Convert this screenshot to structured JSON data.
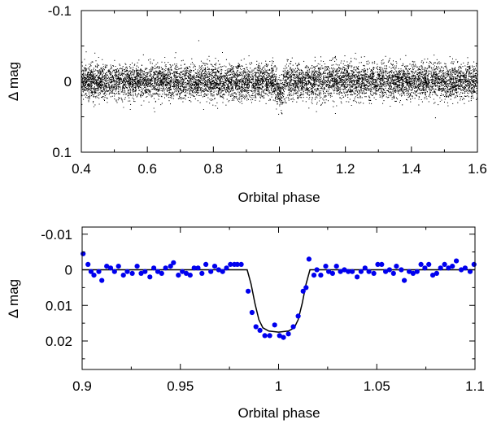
{
  "chart_data": [
    {
      "type": "scatter",
      "xlabel": "Orbital phase",
      "ylabel": "Δ mag",
      "xlim": [
        0.4,
        1.6
      ],
      "ylim": [
        0.1,
        -0.1
      ],
      "y_inverted": true,
      "xticks": [
        0.4,
        0.6,
        0.8,
        1.0,
        1.2,
        1.4,
        1.6
      ],
      "xtick_labels": [
        "0.4",
        "0.6",
        "0.8",
        "1",
        "1.2",
        "1.4",
        "1.6"
      ],
      "yticks": [
        -0.1,
        0,
        0.1
      ],
      "ytick_labels": [
        "-0.1",
        "0",
        "0.1"
      ],
      "grid": false,
      "point_color": "#000000",
      "description_of_cloud": {
        "center_mag": 0.0,
        "scatter_sigma_mag": 0.012,
        "transit_center_phase": 1.0,
        "transit_depth_mag": 0.017,
        "transit_half_width_phase": 0.012,
        "n_points_shown": 9000
      }
    },
    {
      "type": "scatter",
      "xlabel": "Orbital phase",
      "ylabel": "Δ mag",
      "xlim": [
        0.9,
        1.1
      ],
      "ylim": [
        0.028,
        -0.012
      ],
      "y_inverted": true,
      "xticks": [
        0.9,
        0.95,
        1.0,
        1.05,
        1.1
      ],
      "xtick_labels": [
        "0.9",
        "0.95",
        "1",
        "1.05",
        "1.1"
      ],
      "yticks": [
        -0.01,
        0,
        0.01,
        0.02
      ],
      "ytick_labels": [
        "-0.01",
        "0",
        "0.01",
        "0.02"
      ],
      "grid": false,
      "point_color": "#0000ee",
      "model_color": "#000000",
      "points": [
        [
          0.9005,
          -0.0045
        ],
        [
          0.903,
          -0.0015
        ],
        [
          0.9045,
          0.0005
        ],
        [
          0.906,
          0.0015
        ],
        [
          0.9085,
          0.0005
        ],
        [
          0.91,
          0.003
        ],
        [
          0.9125,
          -0.001
        ],
        [
          0.9145,
          -0.0005
        ],
        [
          0.9165,
          0.0005
        ],
        [
          0.9185,
          -0.001
        ],
        [
          0.921,
          0.0015
        ],
        [
          0.923,
          0.0005
        ],
        [
          0.9255,
          0.001
        ],
        [
          0.928,
          -0.001
        ],
        [
          0.93,
          0.001
        ],
        [
          0.932,
          0.0005
        ],
        [
          0.9345,
          0.002
        ],
        [
          0.9365,
          -0.0005
        ],
        [
          0.9385,
          0.0005
        ],
        [
          0.9405,
          0.001
        ],
        [
          0.9425,
          -0.0005
        ],
        [
          0.945,
          -0.001
        ],
        [
          0.9465,
          -0.002
        ],
        [
          0.949,
          0.0015
        ],
        [
          0.951,
          0.0005
        ],
        [
          0.953,
          0.001
        ],
        [
          0.955,
          0.0015
        ],
        [
          0.957,
          -0.0005
        ],
        [
          0.959,
          -0.0005
        ],
        [
          0.961,
          0.001
        ],
        [
          0.963,
          -0.0015
        ],
        [
          0.9655,
          0.0005
        ],
        [
          0.9675,
          -0.001
        ],
        [
          0.9695,
          0.0
        ],
        [
          0.9715,
          0.0005
        ],
        [
          0.9735,
          -0.0005
        ],
        [
          0.9755,
          -0.0015
        ],
        [
          0.9775,
          -0.0015
        ],
        [
          0.979,
          -0.0015
        ],
        [
          0.981,
          -0.0015
        ],
        [
          0.9845,
          0.006
        ],
        [
          0.9865,
          0.012
        ],
        [
          0.9885,
          0.016
        ],
        [
          0.9905,
          0.017
        ],
        [
          0.993,
          0.0185
        ],
        [
          0.9955,
          0.0185
        ],
        [
          0.998,
          0.0155
        ],
        [
          1.0005,
          0.0185
        ],
        [
          1.0025,
          0.019
        ],
        [
          1.005,
          0.018
        ],
        [
          1.0075,
          0.016
        ],
        [
          1.01,
          0.013
        ],
        [
          1.0125,
          0.006
        ],
        [
          1.014,
          0.005
        ],
        [
          1.0155,
          -0.003
        ],
        [
          1.018,
          0.0015
        ],
        [
          1.0195,
          0.0
        ],
        [
          1.0215,
          0.0015
        ],
        [
          1.024,
          -0.001
        ],
        [
          1.0255,
          0.0005
        ],
        [
          1.0275,
          0.001
        ],
        [
          1.0295,
          -0.001
        ],
        [
          1.0315,
          0.0005
        ],
        [
          1.0335,
          0.0
        ],
        [
          1.0355,
          0.0005
        ],
        [
          1.0375,
          0.0005
        ],
        [
          1.04,
          0.002
        ],
        [
          1.042,
          0.0005
        ],
        [
          1.044,
          -0.0005
        ],
        [
          1.046,
          0.0005
        ],
        [
          1.0485,
          0.001
        ],
        [
          1.0505,
          -0.0015
        ],
        [
          1.0525,
          -0.0015
        ],
        [
          1.0545,
          0.0005
        ],
        [
          1.0565,
          0.0
        ],
        [
          1.0585,
          0.001
        ],
        [
          1.06,
          -0.001
        ],
        [
          1.0625,
          0.0
        ],
        [
          1.064,
          0.003
        ],
        [
          1.0665,
          0.0005
        ],
        [
          1.0685,
          0.001
        ],
        [
          1.0705,
          0.0005
        ],
        [
          1.0725,
          -0.0015
        ],
        [
          1.0745,
          -0.0005
        ],
        [
          1.0765,
          -0.0015
        ],
        [
          1.0785,
          0.0015
        ],
        [
          1.0805,
          0.001
        ],
        [
          1.0825,
          -0.0005
        ],
        [
          1.0845,
          -0.0015
        ],
        [
          1.0865,
          -0.0005
        ],
        [
          1.0885,
          -0.001
        ],
        [
          1.0905,
          -0.0025
        ],
        [
          1.093,
          0.0
        ],
        [
          1.095,
          -0.0005
        ],
        [
          1.0975,
          0.0005
        ],
        [
          1.0995,
          -0.0015
        ]
      ],
      "model": [
        [
          0.9,
          0.0
        ],
        [
          0.984,
          0.0
        ],
        [
          0.986,
          0.004
        ],
        [
          0.988,
          0.0095
        ],
        [
          0.99,
          0.014
        ],
        [
          0.992,
          0.0163
        ],
        [
          0.995,
          0.0172
        ],
        [
          1.0,
          0.0175
        ],
        [
          1.005,
          0.0172
        ],
        [
          1.008,
          0.0163
        ],
        [
          1.01,
          0.014
        ],
        [
          1.012,
          0.0095
        ],
        [
          1.014,
          0.004
        ],
        [
          1.016,
          0.0
        ],
        [
          1.1,
          0.0
        ]
      ]
    }
  ]
}
